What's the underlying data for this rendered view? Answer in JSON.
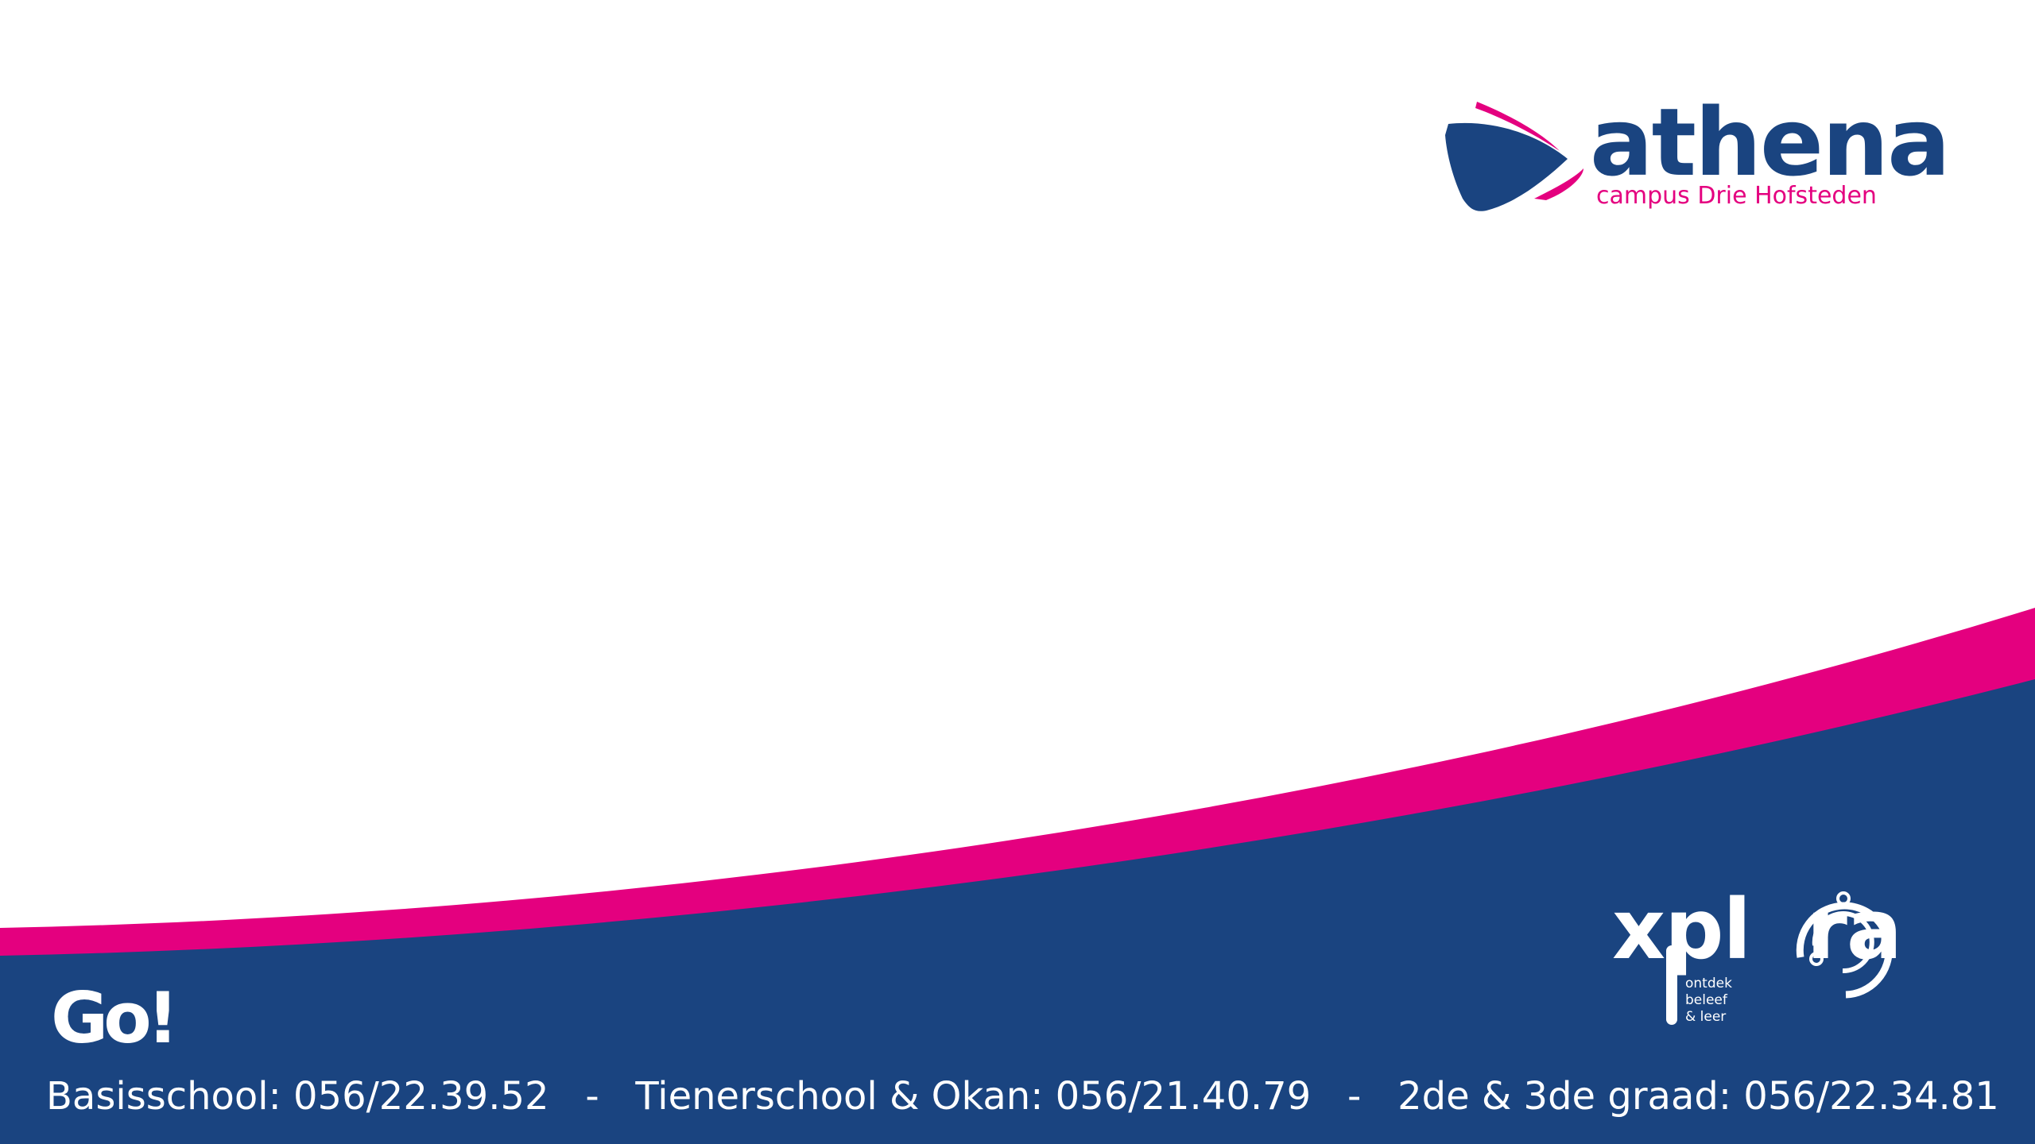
{
  "colors": {
    "navy": "#1a4480",
    "pink": "#e4007f",
    "background": "#ffffff"
  },
  "header": {
    "logo_word": "athena",
    "logo_subtitle": "campus Drie Hofsteden",
    "logo_icon": "athena-ship-icon"
  },
  "footer": {
    "brand_word": "xpl  ra",
    "brand_icon": "xplora-orbit-icon",
    "brand_tagline": [
      "ontdek",
      "beleef",
      "& leer"
    ],
    "network_logo": "Go!",
    "contact_line": "Basisschool: 056/22.39.52   -   Tienerschool & Okan: 056/21.40.79   -   2de & 3de graad: 056/22.34.81"
  }
}
